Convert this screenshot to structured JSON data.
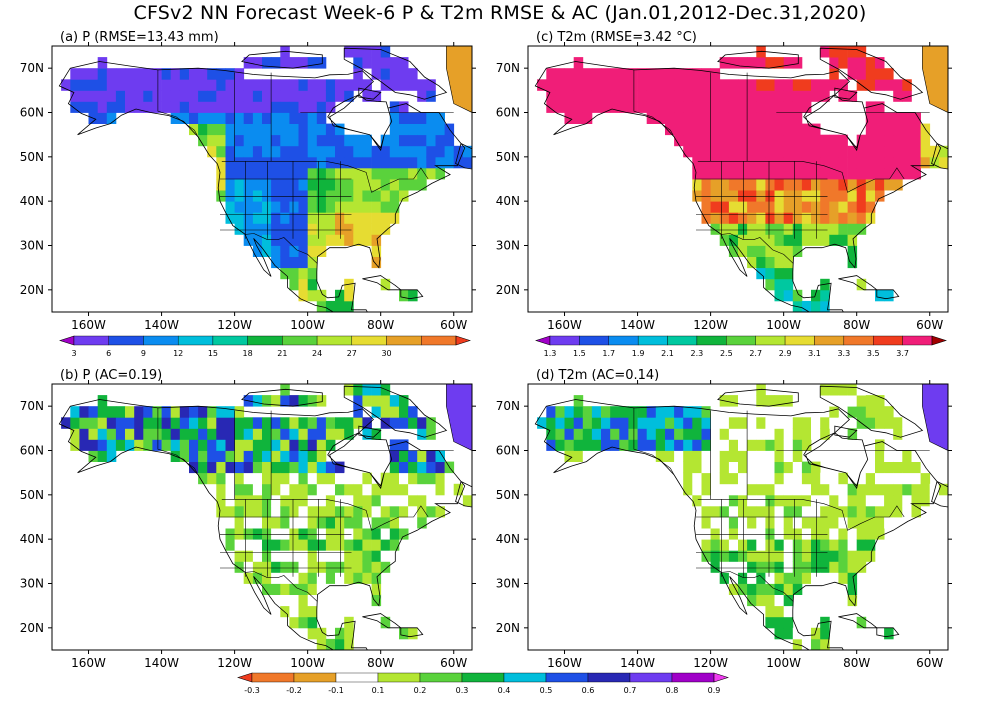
{
  "title": "CFSv2 NN Forecast Week-6 P & T2m RMSE & AC (Jan.01,2012-Dec.31,2020)",
  "map_axes": {
    "lon_labels": [
      "160W",
      "140W",
      "120W",
      "100W",
      "80W",
      "60W"
    ],
    "lon_values": [
      -160,
      -140,
      -120,
      -100,
      -80,
      -60
    ],
    "lat_labels": [
      "70N",
      "60N",
      "50N",
      "40N",
      "30N",
      "20N"
    ],
    "lat_values": [
      70,
      60,
      50,
      40,
      30,
      20
    ],
    "lon_range": [
      -170,
      -55
    ],
    "lat_range": [
      15,
      75
    ]
  },
  "panels": [
    {
      "id": "a",
      "title": "(a) P (RMSE=13.43 mm)",
      "field": "precip_rmse",
      "colorbar": "rmse_p"
    },
    {
      "id": "c",
      "title": "(c) T2m (RMSE=3.42 °C)",
      "field": "t2m_rmse",
      "colorbar": "rmse_t"
    },
    {
      "id": "b",
      "title": "(b) P (AC=0.19)",
      "field": "precip_ac",
      "colorbar": "ac"
    },
    {
      "id": "d",
      "title": "(d) T2m (AC=0.14)",
      "field": "t2m_ac",
      "colorbar": "ac"
    }
  ],
  "colorbars": {
    "rmse_p": {
      "labels": [
        "3",
        "6",
        "9",
        "12",
        "15",
        "18",
        "21",
        "24",
        "27",
        "30"
      ],
      "colors": [
        "#a000c8",
        "#6e3cf0",
        "#1e50e6",
        "#0a8cf0",
        "#00bedc",
        "#00c8a0",
        "#10b43c",
        "#5ad23c",
        "#b4e632",
        "#e6dc32",
        "#e6a028",
        "#f0782a",
        "#f03c1e"
      ]
    },
    "rmse_t": {
      "labels": [
        "1.3",
        "1.5",
        "1.7",
        "1.9",
        "2.1",
        "2.3",
        "2.5",
        "2.7",
        "2.9",
        "3.1",
        "3.3",
        "3.5",
        "3.7"
      ],
      "colors": [
        "#a000c8",
        "#6e3cf0",
        "#1e50e6",
        "#0a8cf0",
        "#00bedc",
        "#00c8a0",
        "#10b43c",
        "#5ad23c",
        "#b4e632",
        "#e6dc32",
        "#e6a028",
        "#f0782a",
        "#f03c1e",
        "#f01e78",
        "#a00000"
      ]
    },
    "ac": {
      "labels": [
        "-0.3",
        "-0.2",
        "-0.1",
        "0.1",
        "0.2",
        "0.3",
        "0.4",
        "0.5",
        "0.6",
        "0.7",
        "0.8",
        "0.9"
      ],
      "colors": [
        "#f03c1e",
        "#f0782a",
        "#e6a028",
        "#ffffff",
        "#b4e632",
        "#5ad23c",
        "#10b43c",
        "#00bedc",
        "#1e50e6",
        "#2828b4",
        "#6e3cf0",
        "#a000c8",
        "#f03cf0"
      ]
    }
  }
}
